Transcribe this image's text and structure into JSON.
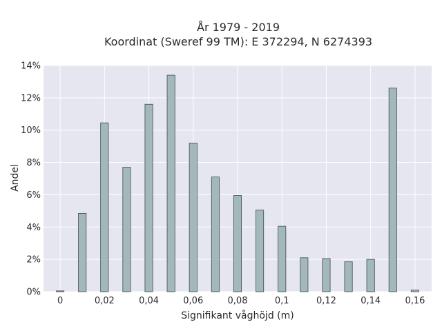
{
  "chart_data": {
    "type": "bar",
    "title_line1": "År 1979 - 2019",
    "title_line2": "Koordinat (Sweref 99 TM): E 372294, N 6274393",
    "xlabel": "Signifikant våghöjd (m)",
    "ylabel": "Andel",
    "x": [
      0,
      0.01,
      0.02,
      0.03,
      0.04,
      0.05,
      0.06,
      0.07,
      0.08,
      0.09,
      0.1,
      0.11,
      0.12,
      0.13,
      0.14,
      0.15,
      0.16
    ],
    "values": [
      0.05,
      4.85,
      10.45,
      7.7,
      11.6,
      13.4,
      9.2,
      7.1,
      5.95,
      5.05,
      4.05,
      2.1,
      2.05,
      1.85,
      2.0,
      12.6,
      0.1
    ],
    "xlim": [
      -0.0075,
      0.1675
    ],
    "ylim": [
      0,
      14
    ],
    "x_ticks": [
      0,
      0.02,
      0.04,
      0.06,
      0.08,
      0.1,
      0.12,
      0.14,
      0.16
    ],
    "x_tick_labels": [
      "0",
      "0,02",
      "0,04",
      "0,06",
      "0,08",
      "0,1",
      "0,12",
      "0,14",
      "0,16"
    ],
    "y_ticks": [
      0,
      2,
      4,
      6,
      8,
      10,
      12,
      14
    ],
    "y_tick_labels": [
      "0%",
      "2%",
      "4%",
      "6%",
      "8%",
      "10%",
      "12%",
      "14%"
    ],
    "bar_width": 0.0035,
    "grid": true,
    "colors": {
      "plot_background": "#e5e6ef",
      "bar_fill": "#a3b8ba",
      "bar_stroke": "#3f4a4b",
      "grid": "#ffffff"
    }
  }
}
